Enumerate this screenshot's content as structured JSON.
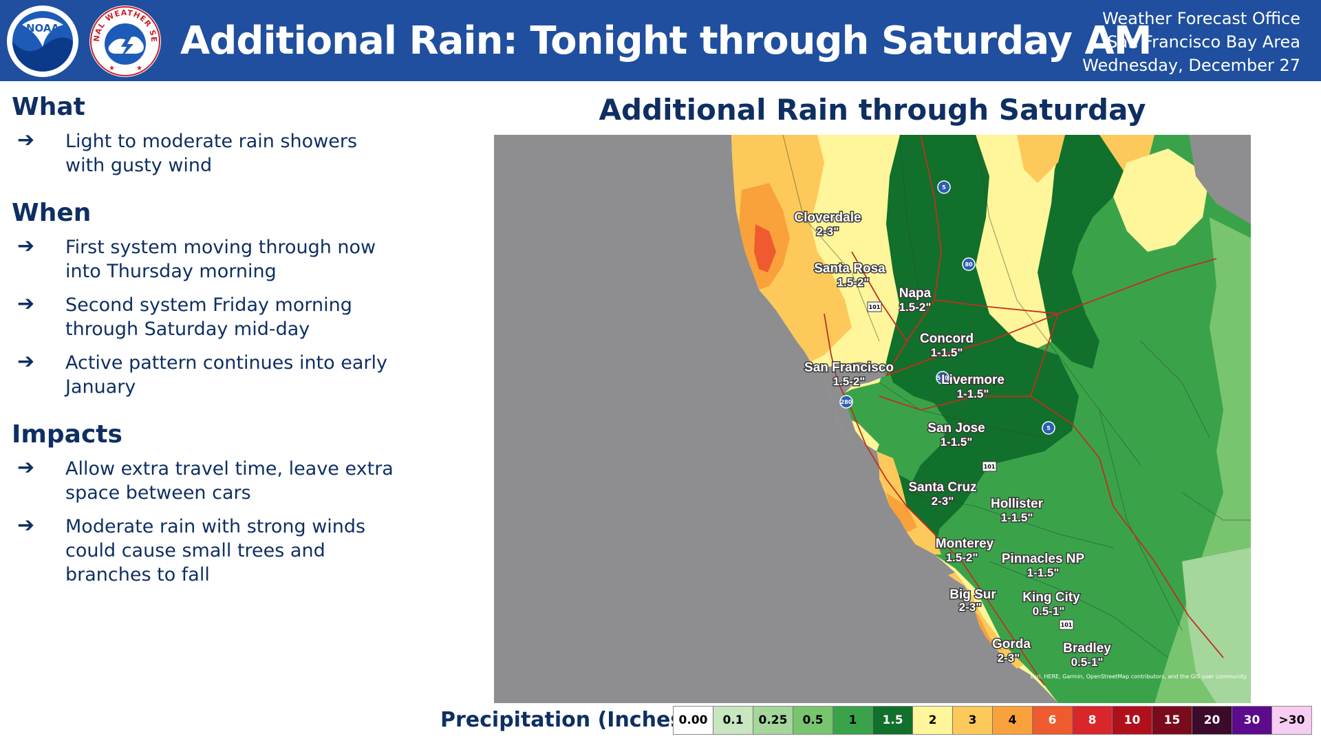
{
  "header": {
    "title": "Additional Rain: Tonight through Saturday AM",
    "office_line1": "Weather Forecast Office",
    "office_line2": "San Francisco Bay Area",
    "office_line3": "Wednesday, December 27",
    "noaa_logo": "NOAA",
    "nws_logo": "NATIONAL WEATHER SERVICE"
  },
  "sections": [
    {
      "heading": "What",
      "bullets": [
        "Light to moderate rain showers with gusty wind"
      ]
    },
    {
      "heading": "When",
      "bullets": [
        "First system moving through now into Thursday morning",
        "Second system Friday morning through Saturday mid-day",
        "Active pattern continues into early January"
      ]
    },
    {
      "heading": "Impacts",
      "bullets": [
        "Allow extra travel time, leave extra space between cars",
        "Moderate rain with strong winds could cause small trees and branches to fall"
      ]
    }
  ],
  "map": {
    "title": "Additional Rain through Saturday",
    "cities": [
      {
        "name": "Cloverdale",
        "amount": "2-3\""
      },
      {
        "name": "Santa Rosa",
        "amount": "1.5-2\""
      },
      {
        "name": "Napa",
        "amount": "1.5-2\""
      },
      {
        "name": "Concord",
        "amount": "1-1.5\""
      },
      {
        "name": "San Francisco",
        "amount": "1.5-2\""
      },
      {
        "name": "Livermore",
        "amount": "1-1.5\""
      },
      {
        "name": "San Jose",
        "amount": "1-1.5\""
      },
      {
        "name": "Santa Cruz",
        "amount": "2-3\""
      },
      {
        "name": "Hollister",
        "amount": "1-1.5\""
      },
      {
        "name": "Monterey",
        "amount": "1.5-2\""
      },
      {
        "name": "Pinnacles NP",
        "amount": "1-1.5\""
      },
      {
        "name": "Big Sur",
        "amount": "2-3\""
      },
      {
        "name": "King City",
        "amount": "0.5-1\""
      },
      {
        "name": "Gorda",
        "amount": "2-3\""
      },
      {
        "name": "Bradley",
        "amount": "0.5-1\""
      }
    ],
    "highways": [
      "5",
      "80",
      "101",
      "580",
      "280",
      "5",
      "101",
      "101"
    ],
    "attribution": "Esri, HERE, Garmin, OpenStreetMap contributors, and the GIS user community"
  },
  "legend": {
    "label": "Precipitation (Inches)",
    "items": [
      {
        "label": "0.00",
        "color": "#ffffff",
        "text_color": "#000000"
      },
      {
        "label": "0.1",
        "color": "#c8e6c0",
        "text_color": "#000000"
      },
      {
        "label": "0.25",
        "color": "#a5d69b",
        "text_color": "#000000"
      },
      {
        "label": "0.5",
        "color": "#79c46f",
        "text_color": "#000000"
      },
      {
        "label": "1",
        "color": "#3aa34a",
        "text_color": "#000000"
      },
      {
        "label": "1.5",
        "color": "#11702b",
        "text_color": "#ffffff"
      },
      {
        "label": "2",
        "color": "#fff59a",
        "text_color": "#000000"
      },
      {
        "label": "3",
        "color": "#fdc95a",
        "text_color": "#000000"
      },
      {
        "label": "4",
        "color": "#f9a13a",
        "text_color": "#000000"
      },
      {
        "label": "6",
        "color": "#ef5a2e",
        "text_color": "#ffffff"
      },
      {
        "label": "8",
        "color": "#d9262a",
        "text_color": "#ffffff"
      },
      {
        "label": "10",
        "color": "#b0101c",
        "text_color": "#ffffff"
      },
      {
        "label": "15",
        "color": "#7a0b1c",
        "text_color": "#ffffff"
      },
      {
        "label": "20",
        "color": "#3c0a2b",
        "text_color": "#ffffff"
      },
      {
        "label": "30",
        "color": "#5c0b8c",
        "text_color": "#ffffff"
      },
      {
        "label": ">30",
        "color": "#f7cdf3",
        "text_color": "#000000"
      }
    ]
  }
}
